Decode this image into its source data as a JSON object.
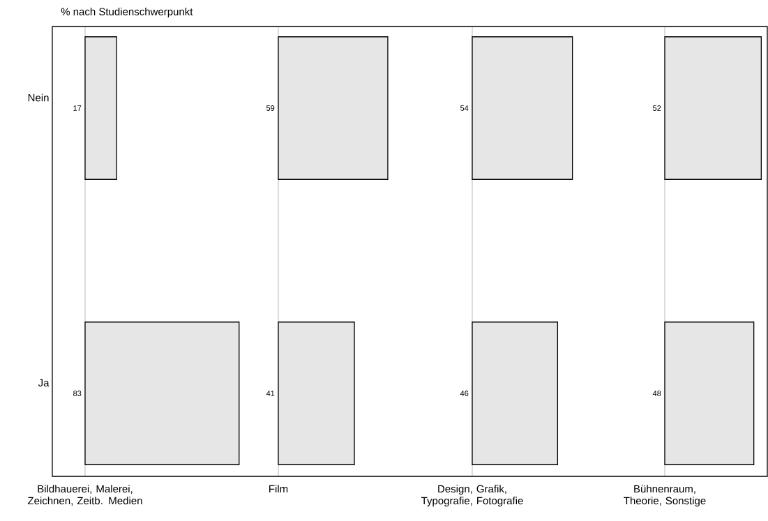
{
  "chart_data": [
    {
      "type": "bar",
      "orientation": "horizontal",
      "title": "% nach Studienschwerpunkt",
      "xlabel": "Bildhauerei, Malerei, Zeichnen, Zeitb. Medien",
      "categories": [
        "Nein",
        "Ja"
      ],
      "values": [
        17,
        83
      ],
      "color": "#e6e6e6",
      "data_labels": true,
      "tick_labels": "y"
    },
    {
      "type": "bar",
      "orientation": "horizontal",
      "xlabel": "Film",
      "categories": [
        null,
        null
      ],
      "values": [
        59,
        41
      ],
      "color": "#e6e6e6",
      "data_labels": true,
      "tick_labels": false
    },
    {
      "type": "bar",
      "orientation": "horizontal",
      "xlabel": "Design, Grafik, Typografie, Fotografie",
      "categories": [
        null,
        null
      ],
      "values": [
        54,
        46
      ],
      "color": "#e6e6e6",
      "data_labels": true,
      "tick_labels": false
    },
    {
      "type": "bar",
      "orientation": "horizontal",
      "xlabel": "Bühnenraum, Theorie, Sonstige",
      "categories": [
        null,
        null
      ],
      "values": [
        52,
        48
      ],
      "color": "#e6e6e6",
      "data_labels": true,
      "tick_labels": false
    }
  ]
}
